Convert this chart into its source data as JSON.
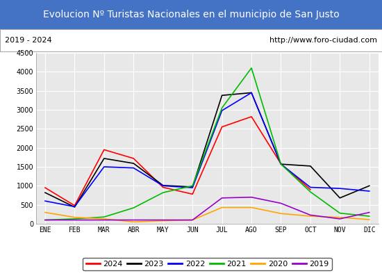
{
  "title": "Evolucion Nº Turistas Nacionales en el municipio de San Justo",
  "subtitle_left": "2019 - 2024",
  "subtitle_right": "http://www.foro-ciudad.com",
  "title_bg_color": "#4472c4",
  "title_text_color": "#ffffff",
  "subtitle_bg_color": "#ffffff",
  "plot_bg_color": "#e8e8e8",
  "months": [
    "ENE",
    "FEB",
    "MAR",
    "ABR",
    "MAY",
    "JUN",
    "JUL",
    "AGO",
    "SEP",
    "OCT",
    "NOV",
    "DIC"
  ],
  "ylim": [
    0,
    4500
  ],
  "yticks": [
    0,
    500,
    1000,
    1500,
    2000,
    2500,
    3000,
    3500,
    4000,
    4500
  ],
  "series": {
    "2024": {
      "color": "#ff0000",
      "data": [
        950,
        480,
        1950,
        1720,
        960,
        780,
        2550,
        2820,
        1580,
        900,
        null,
        null
      ]
    },
    "2023": {
      "color": "#000000",
      "data": [
        820,
        440,
        1720,
        1590,
        1010,
        970,
        3380,
        3450,
        1570,
        1520,
        680,
        1000
      ]
    },
    "2022": {
      "color": "#0000ff",
      "data": [
        600,
        450,
        1500,
        1470,
        1000,
        950,
        2980,
        3450,
        1570,
        960,
        930,
        860
      ]
    },
    "2021": {
      "color": "#00bb00",
      "data": [
        100,
        130,
        180,
        420,
        820,
        1000,
        3050,
        4100,
        1570,
        840,
        280,
        200
      ]
    },
    "2020": {
      "color": "#ffa500",
      "data": [
        300,
        170,
        130,
        50,
        80,
        100,
        430,
        430,
        270,
        200,
        170,
        110
      ]
    },
    "2019": {
      "color": "#9900cc",
      "data": [
        100,
        100,
        100,
        100,
        100,
        100,
        680,
        700,
        540,
        230,
        130,
        300
      ]
    }
  }
}
